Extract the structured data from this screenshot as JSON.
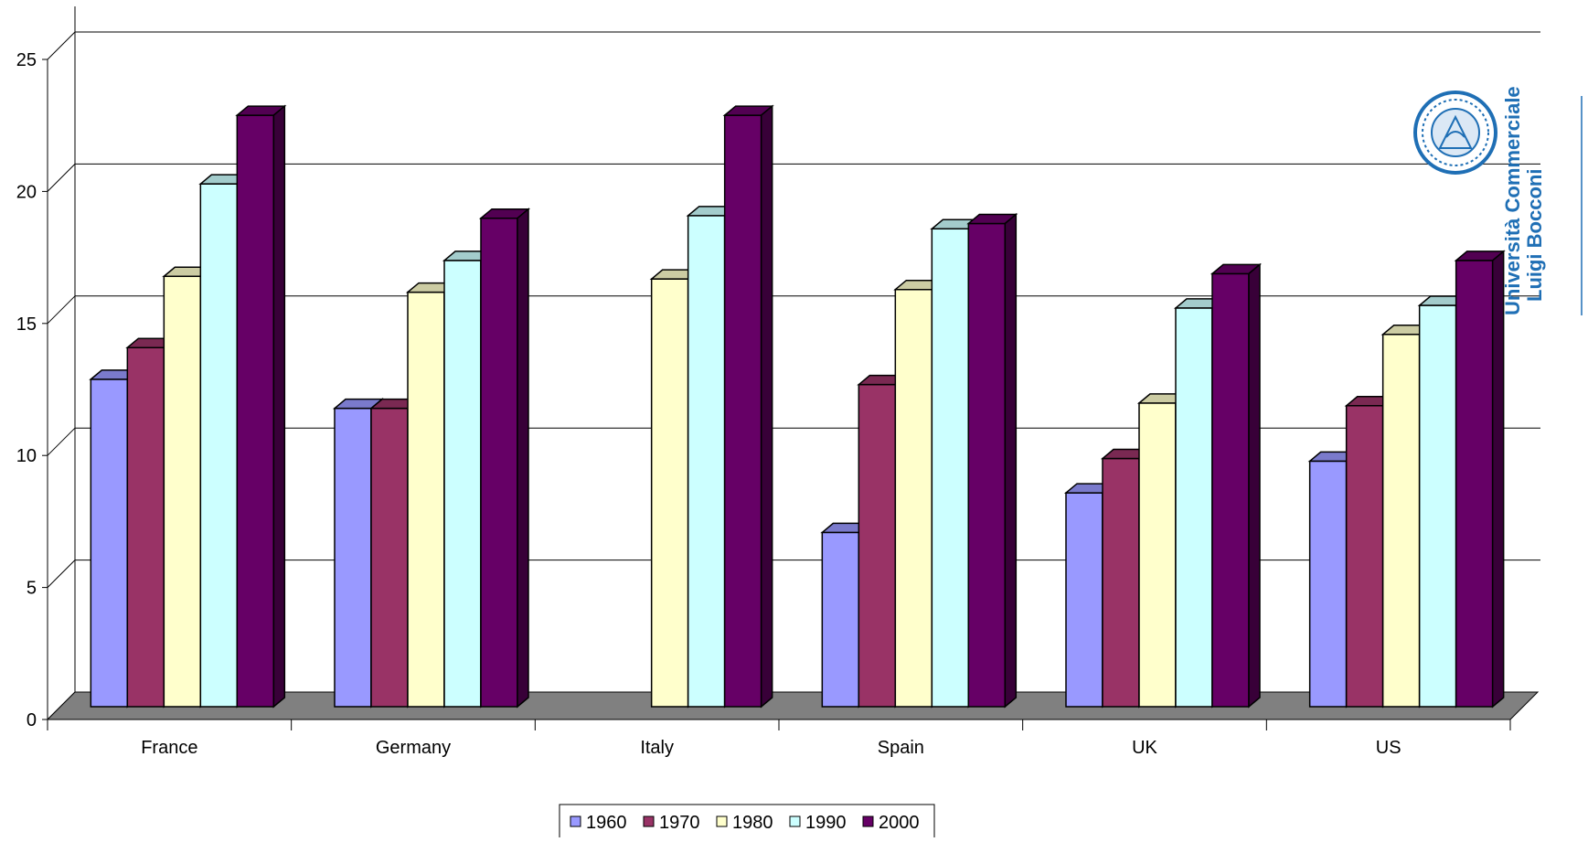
{
  "chart_data": {
    "type": "bar",
    "categories": [
      "France",
      "Germany",
      "Italy",
      "Spain",
      "UK",
      "US"
    ],
    "series": [
      {
        "name": "1960",
        "color": "#9999ff",
        "values": [
          12.4,
          11.3,
          null,
          6.6,
          8.1,
          9.3
        ]
      },
      {
        "name": "1970",
        "color": "#993366",
        "values": [
          13.6,
          11.3,
          null,
          12.2,
          9.4,
          11.4
        ]
      },
      {
        "name": "1980",
        "color": "#ffffcc",
        "values": [
          16.3,
          15.7,
          16.2,
          15.8,
          11.5,
          14.1
        ]
      },
      {
        "name": "1990",
        "color": "#ccffff",
        "values": [
          19.8,
          16.9,
          18.6,
          18.1,
          15.1,
          15.2
        ]
      },
      {
        "name": "2000",
        "color": "#660066",
        "values": [
          22.4,
          18.5,
          22.4,
          18.3,
          16.4,
          16.9
        ]
      }
    ],
    "yticks": [
      "0",
      "5",
      "10",
      "15",
      "20",
      "25"
    ],
    "ylim": [
      0,
      25
    ],
    "grid": true,
    "legend_position": "bottom-center",
    "floor_color": "#808080"
  },
  "logo": {
    "line1": "Università Commerciale",
    "line2": "Luigi Bocconi",
    "color": "#1f6fb5"
  }
}
